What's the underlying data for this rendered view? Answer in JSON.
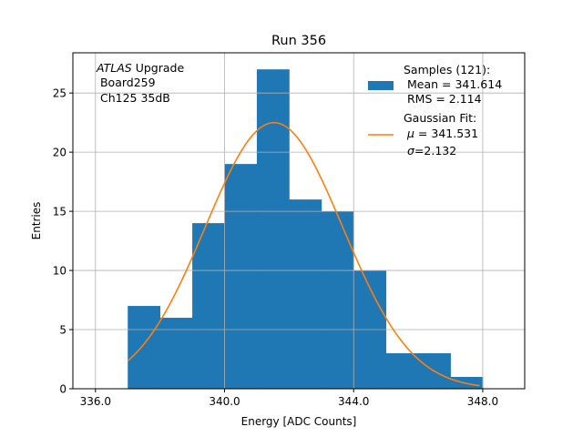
{
  "chart_data": {
    "type": "bar",
    "title": "Run 356",
    "xlabel": "Energy [ADC Counts]",
    "ylabel": "Entries",
    "xlim": [
      335.3,
      349.3
    ],
    "ylim": [
      0,
      28.4
    ],
    "xticks": [
      336.0,
      340.0,
      344.0,
      348.0
    ],
    "xtick_labels": [
      "336.0",
      "340.0",
      "344.0",
      "348.0"
    ],
    "yticks": [
      0,
      5,
      10,
      15,
      20,
      25
    ],
    "grid": true,
    "bins": [
      {
        "x0": 337,
        "x1": 338,
        "count": 7
      },
      {
        "x0": 338,
        "x1": 339,
        "count": 6
      },
      {
        "x0": 339,
        "x1": 340,
        "count": 14
      },
      {
        "x0": 340,
        "x1": 341,
        "count": 19
      },
      {
        "x0": 341,
        "x1": 342,
        "count": 27
      },
      {
        "x0": 342,
        "x1": 343,
        "count": 16
      },
      {
        "x0": 343,
        "x1": 344,
        "count": 15
      },
      {
        "x0": 344,
        "x1": 345,
        "count": 10
      },
      {
        "x0": 345,
        "x1": 346,
        "count": 3
      },
      {
        "x0": 346,
        "x1": 347,
        "count": 3
      },
      {
        "x0": 347,
        "x1": 348,
        "count": 1
      }
    ],
    "fit": {
      "type": "gaussian",
      "mu": 341.531,
      "sigma": 2.132,
      "amplitude": 22.5,
      "x_range": [
        337.0,
        347.9
      ]
    },
    "colors": {
      "hist": "#1f77b4",
      "fit": "#ff7f0e",
      "grid": "#b0b0b0"
    },
    "annotation": {
      "italic": "ATLAS",
      "line1_rest": " Upgrade",
      "line2": " Board259",
      "line3": " Ch125 35dB"
    },
    "legend": {
      "position": "top-right",
      "hist_lines": [
        "Samples (121):",
        " Mean = 341.614",
        " RMS = 2.114"
      ],
      "fit_title": "Gaussian Fit:",
      "fit_mu_symbol": "μ",
      "fit_mu_rest": " = 341.531",
      "fit_sigma_symbol": "σ",
      "fit_sigma_rest": "=2.132"
    }
  }
}
